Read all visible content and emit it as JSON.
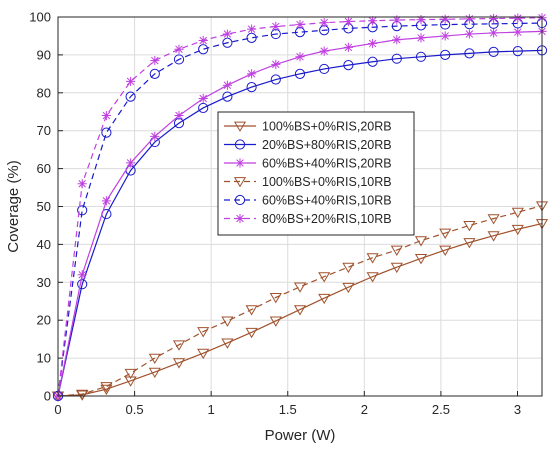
{
  "chart_data": {
    "type": "line",
    "title": "",
    "xlabel": "Power (W)",
    "ylabel": "Coverage (%)",
    "xlim": [
      0,
      3.16
    ],
    "ylim": [
      0,
      100
    ],
    "xticks": [
      0,
      0.5,
      1,
      1.5,
      2,
      2.5,
      3
    ],
    "xtick_labels": [
      "0",
      "0.5",
      "1",
      "1.5",
      "2",
      "2.5",
      "3"
    ],
    "yticks": [
      0,
      10,
      20,
      30,
      40,
      50,
      60,
      70,
      80,
      90,
      100
    ],
    "ytick_labels": [
      "0",
      "10",
      "20",
      "30",
      "40",
      "50",
      "60",
      "70",
      "80",
      "90",
      "100"
    ],
    "grid": true,
    "legend_position": "center-right",
    "x": [
      0,
      0.158,
      0.316,
      0.474,
      0.632,
      0.79,
      0.948,
      1.106,
      1.264,
      1.422,
      1.58,
      1.738,
      1.896,
      2.054,
      2.212,
      2.37,
      2.528,
      2.686,
      2.844,
      3.002,
      3.16
    ],
    "series": [
      {
        "name": "100%BS+0%RIS,20RB",
        "color": "#a0522d",
        "marker": "triangle-down",
        "dash": "solid",
        "values": [
          0,
          0.3,
          1.8,
          4.0,
          6.3,
          8.8,
          11.3,
          14.0,
          16.8,
          19.8,
          22.8,
          25.8,
          28.7,
          31.5,
          34.0,
          36.3,
          38.5,
          40.5,
          42.3,
          44.0,
          45.5
        ]
      },
      {
        "name": "20%BS+80%RIS,20RB",
        "color": "#1a1acc",
        "marker": "circle",
        "dash": "solid",
        "values": [
          0,
          29.5,
          48.0,
          59.5,
          67.0,
          72.0,
          76.0,
          79.0,
          81.5,
          83.5,
          85.0,
          86.3,
          87.3,
          88.2,
          89.0,
          89.5,
          90.0,
          90.4,
          90.8,
          91.0,
          91.2
        ]
      },
      {
        "name": "60%BS+40%RIS,20RB",
        "color": "#c040e0",
        "marker": "asterisk",
        "dash": "solid",
        "values": [
          0,
          32.0,
          51.5,
          61.5,
          68.5,
          74.0,
          78.5,
          82.0,
          85.0,
          87.5,
          89.5,
          91.0,
          92.0,
          93.0,
          94.0,
          94.5,
          95.0,
          95.5,
          95.8,
          96.0,
          96.2
        ]
      },
      {
        "name": "100%BS+0%RIS,10RB",
        "color": "#a0522d",
        "marker": "triangle-down",
        "dash": "dashed",
        "values": [
          0,
          0.5,
          2.5,
          6.0,
          10.0,
          13.5,
          17.0,
          19.8,
          22.8,
          26.0,
          28.8,
          31.5,
          34.0,
          36.5,
          38.5,
          41.0,
          43.0,
          45.0,
          46.8,
          48.5,
          50.2
        ]
      },
      {
        "name": "60%BS+40%RIS,10RB",
        "color": "#1a1acc",
        "marker": "circle",
        "dash": "dashed",
        "values": [
          0,
          49.0,
          69.5,
          79.0,
          85.0,
          88.8,
          91.5,
          93.2,
          94.5,
          95.5,
          96.0,
          96.5,
          97.0,
          97.3,
          97.6,
          97.8,
          98.0,
          98.1,
          98.2,
          98.3,
          98.4
        ]
      },
      {
        "name": "80%BS+20%RIS,10RB",
        "color": "#c040e0",
        "marker": "asterisk",
        "dash": "dashed",
        "values": [
          0,
          56.0,
          74.0,
          83.0,
          88.5,
          91.5,
          93.8,
          95.5,
          96.8,
          97.5,
          98.0,
          98.5,
          98.8,
          99.0,
          99.2,
          99.3,
          99.4,
          99.5,
          99.6,
          99.7,
          99.8
        ]
      }
    ]
  }
}
